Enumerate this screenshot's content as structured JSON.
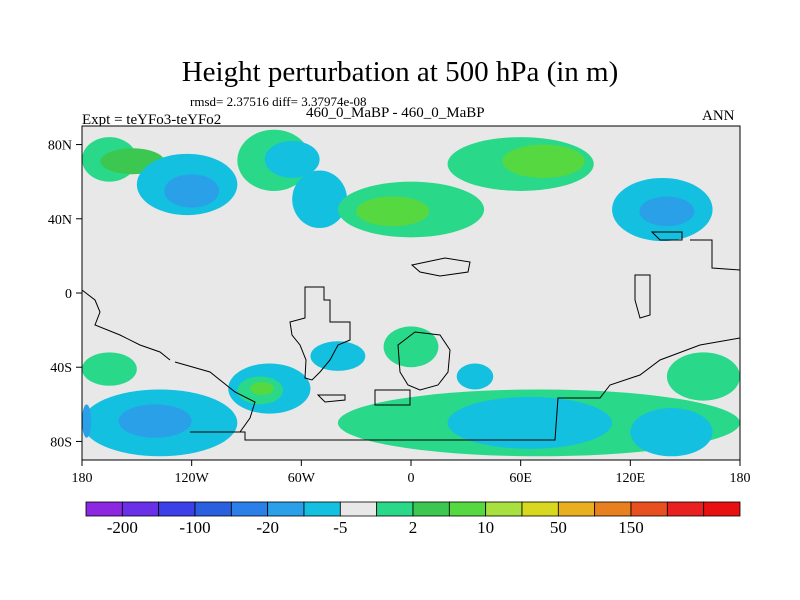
{
  "title": "Height perturbation at 500 hPa (in m)",
  "stats": "rmsd= 2.37516 diff= 3.37974e-08",
  "left_label": "Expt = teYFo3-teYFo2",
  "center_label": "460_0_MaBP - 460_0_MaBP",
  "right_label": "ANN",
  "map": {
    "lon_range": [
      -180,
      180
    ],
    "lat_range": [
      -90,
      90
    ],
    "x_ticks": [
      {
        "value": -180,
        "label": "180"
      },
      {
        "value": -120,
        "label": "120W"
      },
      {
        "value": -60,
        "label": "60W"
      },
      {
        "value": 0,
        "label": "0"
      },
      {
        "value": 60,
        "label": "60E"
      },
      {
        "value": 120,
        "label": "120E"
      },
      {
        "value": 180,
        "label": "180"
      }
    ],
    "y_ticks": [
      {
        "value": 80,
        "label": "80N"
      },
      {
        "value": 40,
        "label": "40N"
      },
      {
        "value": 0,
        "label": "0"
      },
      {
        "value": -40,
        "label": "40S"
      },
      {
        "value": -80,
        "label": "80S"
      }
    ],
    "background_color": "#e8e8e8",
    "regions": [
      {
        "lon": [
          -180,
          -150
        ],
        "lat": [
          60,
          84
        ],
        "color": "#2ad88a"
      },
      {
        "lon": [
          -170,
          -135
        ],
        "lat": [
          64,
          78
        ],
        "color": "#3cc850"
      },
      {
        "lon": [
          -150,
          -95
        ],
        "lat": [
          42,
          75
        ],
        "color": "#14c0e0"
      },
      {
        "lon": [
          -135,
          -105
        ],
        "lat": [
          46,
          64
        ],
        "color": "#2aa0e8"
      },
      {
        "lon": [
          -95,
          -55
        ],
        "lat": [
          55,
          88
        ],
        "color": "#2ad88a"
      },
      {
        "lon": [
          -80,
          -50
        ],
        "lat": [
          62,
          82
        ],
        "color": "#14c0e0"
      },
      {
        "lon": [
          -65,
          -35
        ],
        "lat": [
          35,
          66
        ],
        "color": "#14c0e0"
      },
      {
        "lon": [
          -40,
          40
        ],
        "lat": [
          30,
          60
        ],
        "color": "#2ad88a"
      },
      {
        "lon": [
          -30,
          10
        ],
        "lat": [
          36,
          52
        ],
        "color": "#56d840"
      },
      {
        "lon": [
          20,
          100
        ],
        "lat": [
          55,
          84
        ],
        "color": "#2ad88a"
      },
      {
        "lon": [
          50,
          95
        ],
        "lat": [
          62,
          80
        ],
        "color": "#56d840"
      },
      {
        "lon": [
          110,
          165
        ],
        "lat": [
          28,
          62
        ],
        "color": "#14c0e0"
      },
      {
        "lon": [
          125,
          155
        ],
        "lat": [
          36,
          52
        ],
        "color": "#2aa0e8"
      },
      {
        "lon": [
          -180,
          -150
        ],
        "lat": [
          -50,
          -32
        ],
        "color": "#2ad88a"
      },
      {
        "lon": [
          -180,
          -95
        ],
        "lat": [
          -88,
          -52
        ],
        "color": "#14c0e0"
      },
      {
        "lon": [
          -160,
          -120
        ],
        "lat": [
          -78,
          -60
        ],
        "color": "#2aa0e8"
      },
      {
        "lon": [
          -100,
          -55
        ],
        "lat": [
          -65,
          -38
        ],
        "color": "#14c0e0"
      },
      {
        "lon": [
          -95,
          -70
        ],
        "lat": [
          -60,
          -45
        ],
        "color": "#2ad88a"
      },
      {
        "lon": [
          -88,
          -75
        ],
        "lat": [
          -55,
          -48
        ],
        "color": "#56d840"
      },
      {
        "lon": [
          -55,
          -25
        ],
        "lat": [
          -42,
          -26
        ],
        "color": "#14c0e0"
      },
      {
        "lon": [
          -15,
          15
        ],
        "lat": [
          -40,
          -18
        ],
        "color": "#2ad88a"
      },
      {
        "lon": [
          25,
          45
        ],
        "lat": [
          -52,
          -38
        ],
        "color": "#14c0e0"
      },
      {
        "lon": [
          -40,
          180
        ],
        "lat": [
          -88,
          -52
        ],
        "color": "#2ad88a"
      },
      {
        "lon": [
          20,
          110
        ],
        "lat": [
          -84,
          -56
        ],
        "color": "#14c0e0"
      },
      {
        "lon": [
          120,
          165
        ],
        "lat": [
          -88,
          -62
        ],
        "color": "#14c0e0"
      },
      {
        "lon": [
          140,
          180
        ],
        "lat": [
          -58,
          -32
        ],
        "color": "#2ad88a"
      },
      {
        "lon": [
          -180,
          -175
        ],
        "lat": [
          -78,
          -60
        ],
        "color": "#2aa0e8"
      }
    ]
  },
  "colorbar": {
    "colors": [
      "#8c28e0",
      "#6a30e8",
      "#3c40e8",
      "#2a60e0",
      "#2a80e8",
      "#2aa0e8",
      "#14c0e0",
      "#e8e8e8",
      "#2ad88a",
      "#3cc850",
      "#56d840",
      "#a8e040",
      "#d8d820",
      "#e8b020",
      "#e88020",
      "#e85020",
      "#e82020",
      "#e81010"
    ],
    "labels": [
      "-200",
      "-100",
      "-20",
      "-5",
      "2",
      "10",
      "50",
      "150"
    ]
  }
}
